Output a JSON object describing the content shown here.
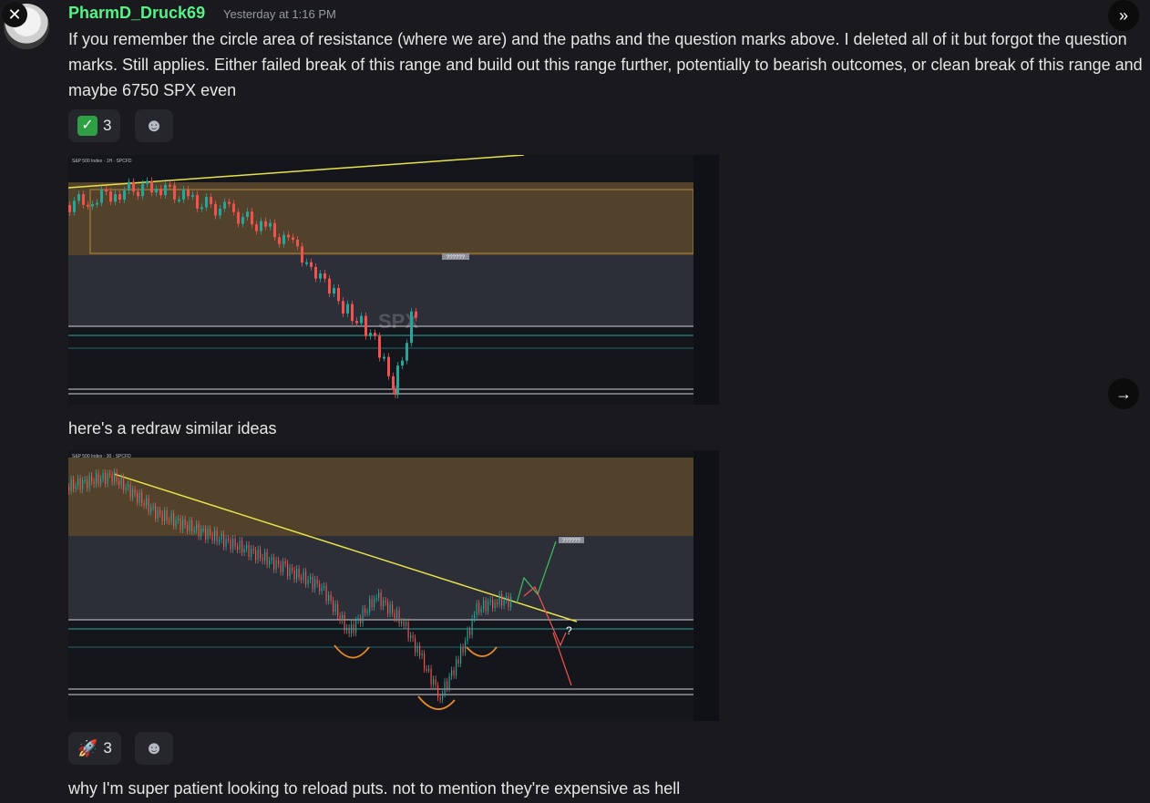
{
  "post": {
    "author": "PharmD_Druck69",
    "timestamp": "Yesterday at 1:16 PM",
    "message_1": "If you remember the circle area of resistance (where we are) and the paths and the question marks above. I deleted all of it but forgot the question marks. Still applies. Either failed break of this range and build out this range further, potentially to bearish outcomes, or clean break of this range and maybe 6750 SPX even",
    "reactions_1": {
      "emoji": "✅",
      "count": "3"
    },
    "message_2": "here's a redraw similar ideas",
    "reactions_2": {
      "emoji": "🚀",
      "count": "3"
    },
    "message_3": "why I'm super patient looking to reload puts. not to mention they're expensive as hell"
  },
  "chart1": {
    "header": "S&P 500 Index · 1H · SPCFD",
    "label": "??????",
    "watermark": "SPX"
  },
  "chart2": {
    "header": "S&P 500 Index · 30 · SPCFD",
    "label": "??????",
    "question": "?"
  },
  "icons": {
    "close": "close-icon",
    "forward": "double-chevron-right-icon",
    "next": "arrow-right-icon",
    "react": "smiley-add-icon"
  },
  "colors": {
    "username": "#57f287",
    "resistance_zone": "#8a6a3a",
    "trendline": "#e8e24a",
    "up_candle": "#26a69a",
    "down_candle": "#ef5350"
  }
}
